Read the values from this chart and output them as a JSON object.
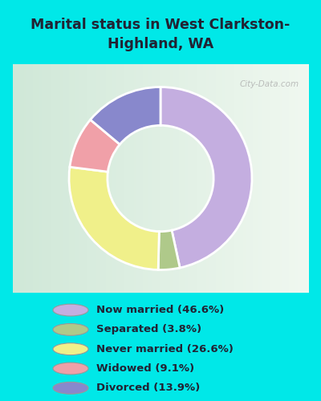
{
  "title": "Marital status in West Clarkston-\nHighland, WA",
  "slices": [
    46.6,
    3.8,
    26.6,
    9.1,
    13.9
  ],
  "labels": [
    "Now married (46.6%)",
    "Separated (3.8%)",
    "Never married (26.6%)",
    "Widowed (9.1%)",
    "Divorced (13.9%)"
  ],
  "colors": [
    "#c4aee0",
    "#afc98a",
    "#f0f08a",
    "#f0a0a8",
    "#8888cc"
  ],
  "bg_color": "#00e8e8",
  "chart_bg_left": "#d8ede0",
  "chart_bg_right": "#eaf4ee",
  "title_color": "#222233",
  "start_angle": 90,
  "donut_width": 0.55,
  "watermark": "City-Data.com"
}
